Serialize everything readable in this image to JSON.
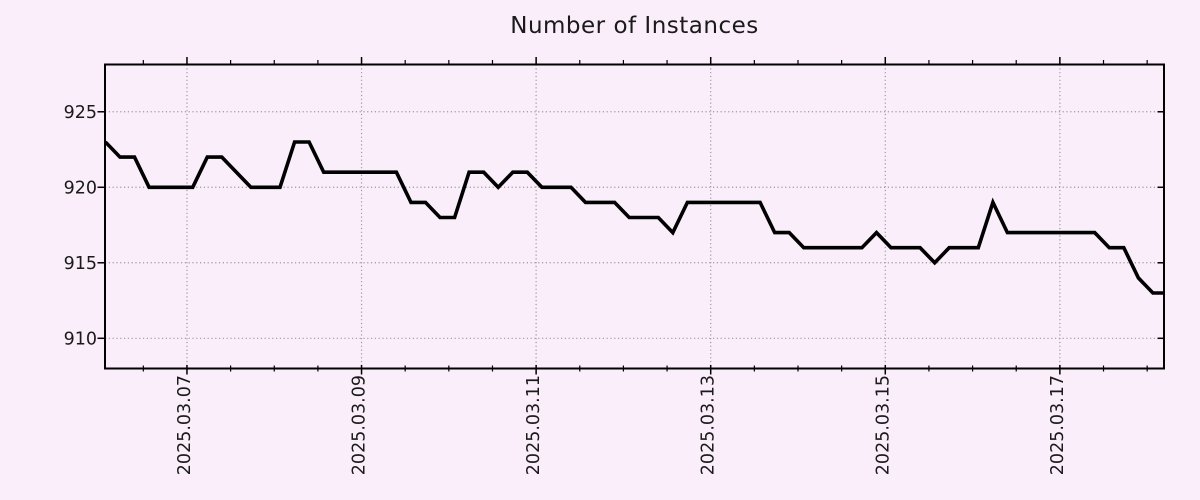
{
  "chart_data": {
    "type": "line",
    "title": "Number of Instances",
    "xlabel": "",
    "ylabel": "",
    "legend": "none",
    "grid": "dotted",
    "colors": {
      "background": "#faeefa",
      "line": "#000000",
      "grid": "#9a9a9a",
      "axis": "#000000",
      "text": "#1a1a1a"
    },
    "y_ticks": [
      910,
      915,
      920,
      925
    ],
    "ylim": [
      908,
      928.13
    ],
    "xlim_days": [
      0.061,
      12.193
    ],
    "x_gridlines": [
      {
        "label": "2025.03.07",
        "day": 1
      },
      {
        "label": "2025.03.09",
        "day": 3
      },
      {
        "label": "2025.03.11",
        "day": 5
      },
      {
        "label": "2025.03.13",
        "day": 7
      },
      {
        "label": "2025.03.15",
        "day": 9
      },
      {
        "label": "2025.03.17",
        "day": 11
      }
    ],
    "x_minor_tick_interval_days": 0.5,
    "series": [
      {
        "name": "instances",
        "start_day": 0.066,
        "step_days": 0.166667,
        "values": [
          923,
          922,
          922,
          920,
          920,
          920,
          920,
          922,
          922,
          921,
          920,
          920,
          920,
          923,
          923,
          921,
          921,
          921,
          921,
          921,
          921,
          919,
          919,
          918,
          918,
          921,
          921,
          920,
          921,
          921,
          920,
          920,
          920,
          919,
          919,
          919,
          918,
          918,
          918,
          917,
          919,
          919,
          919,
          919,
          919,
          919,
          917,
          917,
          916,
          916,
          916,
          916,
          916,
          917,
          916,
          916,
          916,
          915,
          916,
          916,
          916,
          919,
          917,
          917,
          917,
          917,
          917,
          917,
          917,
          916,
          916,
          914,
          913,
          913
        ]
      }
    ]
  }
}
